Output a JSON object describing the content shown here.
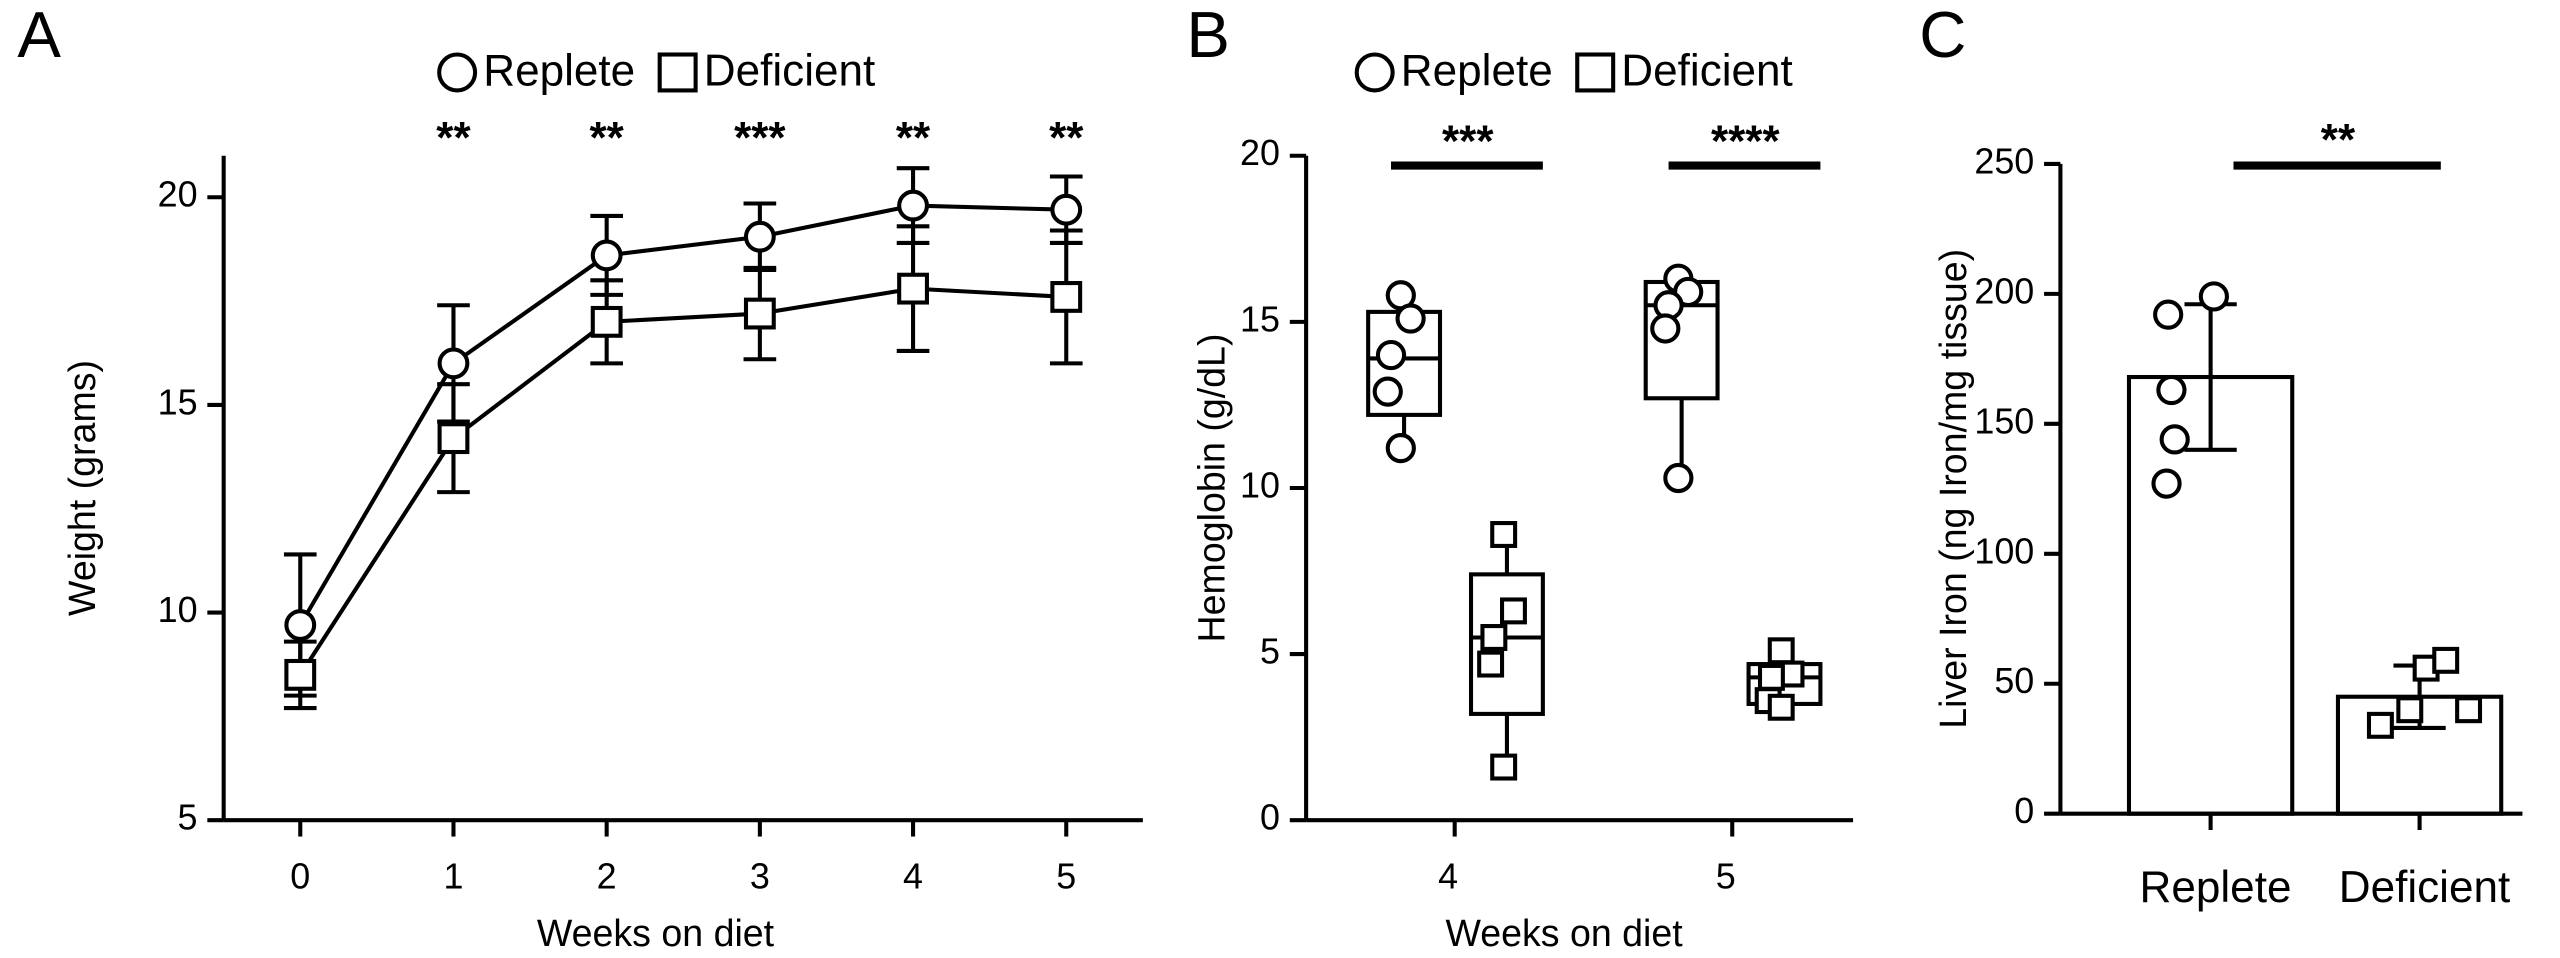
{
  "chart_data": [
    {
      "type": "line",
      "panel_label": "A",
      "xlabel": "Weeks on diet",
      "ylabel": "Weight (grams)",
      "x": [
        0,
        1,
        2,
        3,
        4,
        5
      ],
      "xlim": [
        -0.5,
        5.5
      ],
      "xticks": [
        0,
        1,
        2,
        3,
        4,
        5
      ],
      "ylim": [
        5,
        21
      ],
      "yticks": [
        5,
        10,
        15,
        20
      ],
      "series": [
        {
          "name": "Replete",
          "marker": "circle",
          "color": "#000000",
          "values": [
            9.7,
            16,
            18.6,
            19.05,
            19.8,
            19.7
          ],
          "errors": [
            1.7,
            1.4,
            0.95,
            0.8,
            0.9,
            0.8
          ]
        },
        {
          "name": "Deficient",
          "marker": "square",
          "color": "#000000",
          "values": [
            8.5,
            14.2,
            17,
            17.2,
            17.8,
            17.6
          ],
          "errors": [
            0.8,
            1.3,
            1.0,
            1.1,
            1.5,
            1.6
          ]
        }
      ],
      "significance": [
        null,
        "**",
        "**",
        "***",
        "**",
        "**"
      ]
    },
    {
      "type": "box",
      "panel_label": "B",
      "xlabel": "Weeks on diet",
      "ylabel": "Hemoglobin (g/dL)",
      "categories": [
        "4",
        "5"
      ],
      "ylim": [
        0,
        20
      ],
      "yticks": [
        0,
        5,
        10,
        15,
        20
      ],
      "series": [
        {
          "name": "Replete",
          "marker": "circle",
          "color": "#000000",
          "points": [
            [
              15.8,
              15.1,
              14,
              12.9,
              11.2
            ],
            [
              16.3,
              15.9,
              15.5,
              14.8,
              10.3
            ]
          ],
          "min": [
            11.2,
            10.3
          ],
          "q1": [
            12.2,
            12.7
          ],
          "median": [
            13.9,
            15.5
          ],
          "q3": [
            15.3,
            16.2
          ],
          "max": [
            15.8,
            16.3
          ]
        },
        {
          "name": "Deficient",
          "marker": "square",
          "color": "#000000",
          "points": [
            [
              8.6,
              6.3,
              5.5,
              4.7,
              1.6
            ],
            [
              5.1,
              4.4,
              4.3,
              3.6,
              3.4
            ]
          ],
          "min": [
            1.6,
            3.4
          ],
          "q1": [
            3.2,
            3.5
          ],
          "median": [
            5.5,
            4.3
          ],
          "q3": [
            7.4,
            4.7
          ],
          "max": [
            8.6,
            5.1
          ]
        }
      ],
      "significance": [
        "***",
        "****"
      ]
    },
    {
      "type": "bar",
      "panel_label": "C",
      "ylabel": "Liver Iron (ng Iron/mg tissue)",
      "categories": [
        "Replete",
        "Deficient"
      ],
      "values": [
        168,
        45
      ],
      "errors": [
        28,
        12
      ],
      "points": [
        [
          199,
          192,
          163,
          144,
          127
        ],
        [
          34,
          56,
          59,
          40,
          40
        ]
      ],
      "markers": [
        "circle",
        "square"
      ],
      "color": "#ffffff",
      "ylim": [
        0,
        250
      ],
      "yticks": [
        0,
        50,
        100,
        150,
        200,
        250
      ],
      "significance": "**"
    }
  ]
}
